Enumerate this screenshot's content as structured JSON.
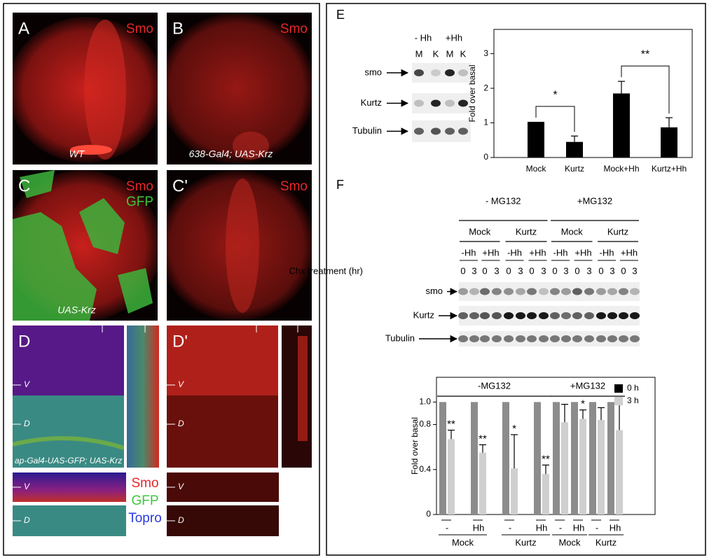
{
  "images": [
    {
      "letter": "A",
      "labels": [
        "Smo"
      ],
      "caption": "WT"
    },
    {
      "letter": "B",
      "labels": [
        "Smo"
      ],
      "caption": "638-Gal4; UAS-Krz"
    },
    {
      "letter": "C",
      "labels": [
        "Smo",
        "GFP"
      ],
      "caption": "UAS-Krz"
    },
    {
      "letter": "C'",
      "labels": [
        "Smo"
      ]
    },
    {
      "letter": "D",
      "axes": [
        "V",
        "D"
      ],
      "caption": "ap-Gal4-UAS-GFP; UAS-Krz",
      "strip_labels": [
        "V",
        "D"
      ]
    },
    {
      "letter": "D'",
      "axes": [
        "V",
        "D"
      ],
      "strip_labels": [
        "V",
        "D"
      ]
    }
  ],
  "stain_legend": [
    "Smo",
    "GFP",
    "Topro"
  ],
  "blot_e": {
    "letter": "E",
    "conditions": [
      "- Hh",
      "+Hh"
    ],
    "lanes": [
      "M",
      "K",
      "M",
      "K"
    ],
    "rows": [
      "smo",
      "Kurtz",
      "Tubulin"
    ]
  },
  "blot_f": {
    "letter": "F",
    "treatments": [
      "- MG132",
      "+MG132"
    ],
    "groups": [
      "Mock",
      "Kurtz",
      "Mock",
      "Kurtz"
    ],
    "hh": [
      "-Hh",
      "+Hh",
      "-Hh",
      "+Hh",
      "-Hh",
      "+Hh",
      "-Hh",
      "+Hh"
    ],
    "chx_label": "Chx treatment (hr)",
    "times": [
      0,
      3,
      0,
      3,
      0,
      3,
      0,
      3,
      0,
      3,
      0,
      3,
      0,
      3,
      0,
      3
    ],
    "rows": [
      "smo",
      "Kurtz",
      "Tubulin"
    ]
  },
  "chart_data": [
    {
      "type": "bar",
      "y_label": "Fold over basal",
      "categories": [
        "Mock",
        "Kurtz",
        "Mock+Hh",
        "Kurtz+Hh"
      ],
      "values": [
        1.03,
        0.45,
        1.85,
        0.87
      ],
      "errors": [
        null,
        0.17,
        0.35,
        0.28
      ],
      "color": "#000000",
      "ylim": [
        0,
        3.7
      ],
      "yticks": [
        0,
        1,
        2,
        3
      ],
      "significance": [
        {
          "from": 0,
          "to": 1,
          "label": "*"
        },
        {
          "from": 2,
          "to": 3,
          "label": "**"
        }
      ]
    },
    {
      "type": "grouped_bar",
      "y_label": "Fold over basal",
      "categories": [
        "-",
        "Hh",
        "-",
        "Hh",
        "-",
        "Hh",
        "-",
        "Hh"
      ],
      "groups": [
        "Mock",
        "Kurtz",
        "Mock",
        "Kurtz"
      ],
      "top_groups": [
        "-MG132",
        "+MG132"
      ],
      "series": [
        {
          "name": "0 h",
          "color": "#8c8c8c",
          "values": [
            1,
            1,
            1,
            1,
            1,
            1,
            1,
            1
          ]
        },
        {
          "name": "3 h",
          "color": "#cfcfcf",
          "values": [
            0.67,
            0.55,
            0.41,
            0.36,
            0.82,
            0.85,
            0.84,
            0.75
          ],
          "errors": [
            0.08,
            0.07,
            0.3,
            0.08,
            0.16,
            0.08,
            0.11,
            0.25
          ]
        }
      ],
      "annotations": [
        {
          "index": 0,
          "label": "**"
        },
        {
          "index": 1,
          "label": "**"
        },
        {
          "index": 2,
          "label": "*"
        },
        {
          "index": 3,
          "label": "**"
        },
        {
          "index": 5,
          "label": "*"
        }
      ],
      "ylim": [
        0,
        1.22
      ],
      "yticks": [
        0,
        0.4,
        0.8,
        {
          "value": 1,
          "label": "1.0"
        }
      ],
      "legend": "top-right"
    }
  ]
}
